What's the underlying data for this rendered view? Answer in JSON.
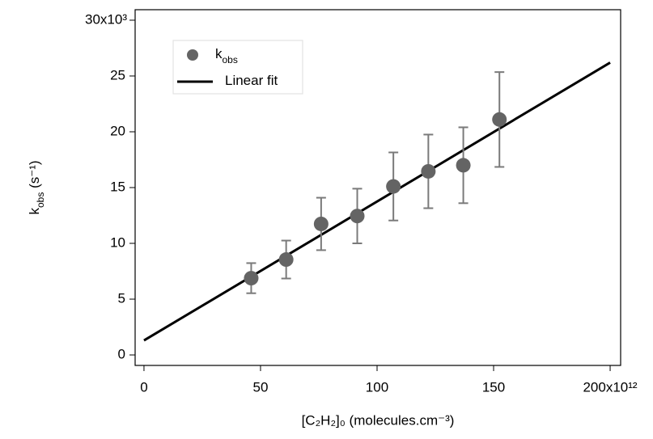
{
  "chart_data": {
    "type": "scatter",
    "xlabel": "[C₂H₂]₀ (molecules.cm⁻³)",
    "ylabel": [
      {
        "text": "k"
      },
      {
        "text": "obs",
        "shift": "sub"
      },
      {
        "text": " (s⁻¹)"
      }
    ],
    "xlim": [
      -3.8,
      204.5
    ],
    "ylim": [
      -0.94,
      30.94
    ],
    "xticks": [
      0,
      50,
      100,
      150,
      {
        "value": 200,
        "label": "200x10¹²"
      }
    ],
    "yticks": [
      0,
      5,
      10,
      15,
      20,
      25,
      {
        "value": 30,
        "label": "30x10³"
      }
    ],
    "grid": false,
    "legend": "upper-left",
    "series": [
      {
        "name": [
          {
            "text": "k"
          },
          {
            "text": "obs",
            "shift": "sub"
          }
        ],
        "mode": "markers",
        "color": "#646464",
        "error_color": "#7a7a7a",
        "x": [
          46,
          61,
          76,
          91.5,
          107,
          122,
          137,
          152.5
        ],
        "values": [
          6.88,
          8.55,
          11.74,
          12.45,
          15.1,
          16.45,
          17.0,
          21.1
        ],
        "errors": [
          1.35,
          1.7,
          2.35,
          2.45,
          3.05,
          3.3,
          3.4,
          4.25
        ]
      },
      {
        "name": [
          {
            "text": "Linear fit"
          }
        ],
        "mode": "line",
        "color": "#000000",
        "x": [
          0,
          200
        ],
        "values": [
          1.3,
          26.2
        ]
      }
    ]
  }
}
